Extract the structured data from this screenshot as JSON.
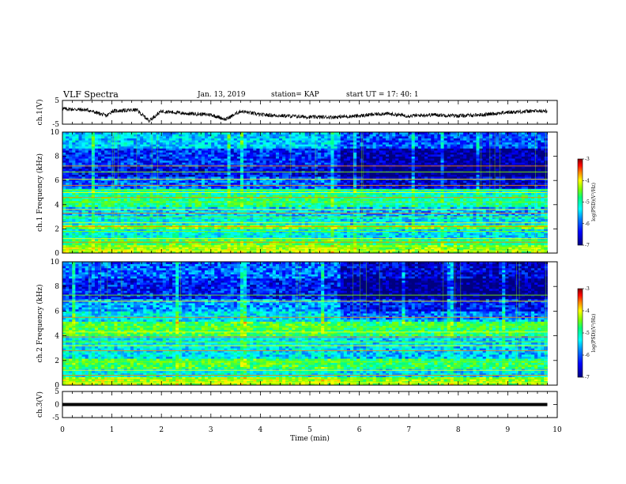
{
  "header": {
    "title": "VLF Spectra",
    "date": "Jan. 13, 2019",
    "station": "station= KAP",
    "start": "start  UT =   17: 40: 1"
  },
  "colors": {
    "scale": [
      "#000080",
      "#0000ff",
      "#0080ff",
      "#00ffff",
      "#00ff80",
      "#80ff00",
      "#ffff00",
      "#ff8000",
      "#ff0000",
      "#800000"
    ]
  },
  "chart_data": [
    {
      "type": "line",
      "panel": "ch1-waveform",
      "ylabel": "ch.1(V)",
      "ylim": [
        -5,
        5
      ],
      "yticks": [
        "5",
        "-5"
      ],
      "xlim": [
        0,
        10
      ],
      "x": [
        0,
        0.5,
        0.9,
        1.0,
        1.5,
        1.75,
        2.0,
        2.5,
        3.0,
        3.3,
        3.6,
        4.0,
        4.5,
        5.0,
        5.5,
        6.0,
        6.5,
        7.0,
        7.5,
        8.0,
        8.5,
        9.0,
        9.5,
        9.8
      ],
      "values": [
        1.5,
        1.0,
        -1.5,
        0.5,
        1.0,
        -3.5,
        0.5,
        -0.5,
        -1.0,
        -3.0,
        0.5,
        -1.0,
        -1.5,
        -2.0,
        -2.0,
        -1.5,
        -0.5,
        -1.5,
        -1.0,
        -1.5,
        -1.0,
        0.0,
        0.5,
        0.5
      ]
    },
    {
      "type": "heatmap",
      "panel": "ch1-spectrogram",
      "ylabel": "ch.1 Frequency (kHz)",
      "ylim": [
        0,
        10
      ],
      "yticks": [
        "0",
        "2",
        "4",
        "6",
        "8",
        "10"
      ],
      "xlim": [
        0,
        9.8
      ],
      "colorbar": {
        "label": "log(PSD)(V²/Hz)",
        "ticks": [
          "-3",
          "-4",
          "-5",
          "-6",
          "-7"
        ],
        "range": [
          -7,
          -3
        ]
      },
      "bands": [
        {
          "from": 0.0,
          "to": 0.6,
          "level": -4.6
        },
        {
          "from": 0.6,
          "to": 1.2,
          "level": -5.0
        },
        {
          "from": 1.2,
          "to": 2.0,
          "level": -5.6
        },
        {
          "from": 2.0,
          "to": 2.4,
          "level": -4.8
        },
        {
          "from": 2.4,
          "to": 3.0,
          "level": -5.6
        },
        {
          "from": 3.0,
          "to": 3.8,
          "level": -5.8
        },
        {
          "from": 3.8,
          "to": 4.8,
          "level": -5.2
        },
        {
          "from": 4.8,
          "to": 5.4,
          "level": -5.4
        },
        {
          "from": 5.4,
          "to": 6.4,
          "level": -6.2
        },
        {
          "from": 6.4,
          "to": 7.2,
          "level": -6.6
        },
        {
          "from": 7.2,
          "to": 8.6,
          "level": -6.4
        },
        {
          "from": 8.6,
          "to": 10.0,
          "level": -5.8
        }
      ],
      "lines_khz": [
        0.2,
        0.5,
        0.9,
        1.2,
        1.8,
        2.2,
        2.5,
        3.0,
        3.3,
        3.6,
        4.2,
        4.6,
        5.0,
        5.2,
        5.6,
        6.1,
        6.7,
        7.2
      ]
    },
    {
      "type": "heatmap",
      "panel": "ch2-spectrogram",
      "ylabel": "ch.2 Frequency (kHz)",
      "ylim": [
        0,
        10
      ],
      "yticks": [
        "0",
        "2",
        "4",
        "6",
        "8",
        "10"
      ],
      "xlim": [
        0,
        9.8
      ],
      "colorbar": {
        "label": "log(PSD)(V²/Hz)",
        "ticks": [
          "-3",
          "-4",
          "-5",
          "-6",
          "-7"
        ],
        "range": [
          -7,
          -3
        ]
      },
      "bands": [
        {
          "from": 0.0,
          "to": 0.6,
          "level": -4.6
        },
        {
          "from": 0.6,
          "to": 1.4,
          "level": -5.6
        },
        {
          "from": 1.4,
          "to": 2.2,
          "level": -5.0
        },
        {
          "from": 2.2,
          "to": 3.2,
          "level": -5.7
        },
        {
          "from": 3.2,
          "to": 4.0,
          "level": -5.6
        },
        {
          "from": 4.0,
          "to": 5.2,
          "level": -5.0
        },
        {
          "from": 5.2,
          "to": 6.0,
          "level": -5.7
        },
        {
          "from": 6.0,
          "to": 7.0,
          "level": -6.0
        },
        {
          "from": 7.0,
          "to": 8.6,
          "level": -6.5
        },
        {
          "from": 8.6,
          "to": 10.0,
          "level": -6.2
        }
      ],
      "lines_khz": [
        0.2,
        0.5,
        0.8,
        1.2,
        1.9,
        2.8,
        3.2,
        3.5,
        3.9,
        4.3,
        4.7,
        5.5,
        6.8,
        7.3
      ]
    },
    {
      "type": "line",
      "panel": "ch3-waveform",
      "ylabel": "ch.3(V)",
      "ylim": [
        -5,
        5
      ],
      "yticks": [
        "5",
        "0",
        "-5"
      ],
      "xlim": [
        0,
        10
      ],
      "x": [
        0,
        9.8
      ],
      "values": [
        0.0,
        0.0
      ]
    }
  ],
  "xaxis": {
    "label": "Time (min)",
    "ticks": [
      "0",
      "1",
      "2",
      "3",
      "4",
      "5",
      "6",
      "7",
      "8",
      "9",
      "10"
    ]
  }
}
